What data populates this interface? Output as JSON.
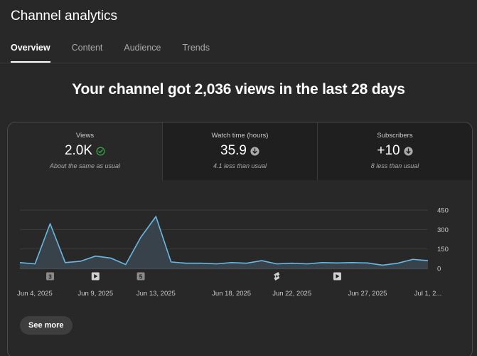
{
  "header": {
    "title": "Channel analytics"
  },
  "tabs": [
    {
      "label": "Overview",
      "active": true
    },
    {
      "label": "Content",
      "active": false
    },
    {
      "label": "Audience",
      "active": false
    },
    {
      "label": "Trends",
      "active": false
    }
  ],
  "headline": "Your channel got 2,036 views in the last 28 days",
  "metrics": [
    {
      "label": "Views",
      "value": "2.0K",
      "icon": "check-circle-icon",
      "icon_color": "#3ea64d",
      "note": "About the same as usual"
    },
    {
      "label": "Watch time (hours)",
      "value": "35.9",
      "icon": "arrow-down-circle-icon",
      "icon_color": "#aaaaaa",
      "note": "4.1 less than usual"
    },
    {
      "label": "Subscribers",
      "value": "+10",
      "icon": "arrow-down-circle-icon",
      "icon_color": "#aaaaaa",
      "note": "8 less than usual"
    }
  ],
  "chart_data": {
    "type": "area",
    "series": [
      {
        "values": [
          45,
          35,
          345,
          45,
          55,
          95,
          80,
          30,
          240,
          400,
          50,
          40,
          40,
          35,
          45,
          40,
          60,
          35,
          40,
          35,
          45,
          42,
          45,
          42,
          25,
          40,
          70,
          60
        ]
      }
    ],
    "ylim": [
      0,
      450
    ],
    "yticks": [
      "450",
      "300",
      "150",
      "0"
    ],
    "ytick_values": [
      450,
      300,
      150,
      0
    ],
    "xtick_labels": [
      "Jun 4, 2025",
      "Jun 9, 2025",
      "Jun 13, 2025",
      "Jun 18, 2025",
      "Jun 22, 2025",
      "Jun 27, 2025",
      "Jul 1, 2..."
    ],
    "xtick_day_index": [
      0,
      5,
      9,
      14,
      18,
      23,
      27
    ],
    "line_color": "#6ab9e3",
    "fill_color": "#3a4650",
    "grid": true,
    "markers": [
      {
        "day_index": 2,
        "kind": "count",
        "label": "3"
      },
      {
        "day_index": 5,
        "kind": "video",
        "label": ""
      },
      {
        "day_index": 8,
        "kind": "count",
        "label": "5"
      },
      {
        "day_index": 17,
        "kind": "short",
        "label": ""
      },
      {
        "day_index": 21,
        "kind": "video",
        "label": ""
      }
    ]
  },
  "see_more": {
    "label": "See more"
  }
}
